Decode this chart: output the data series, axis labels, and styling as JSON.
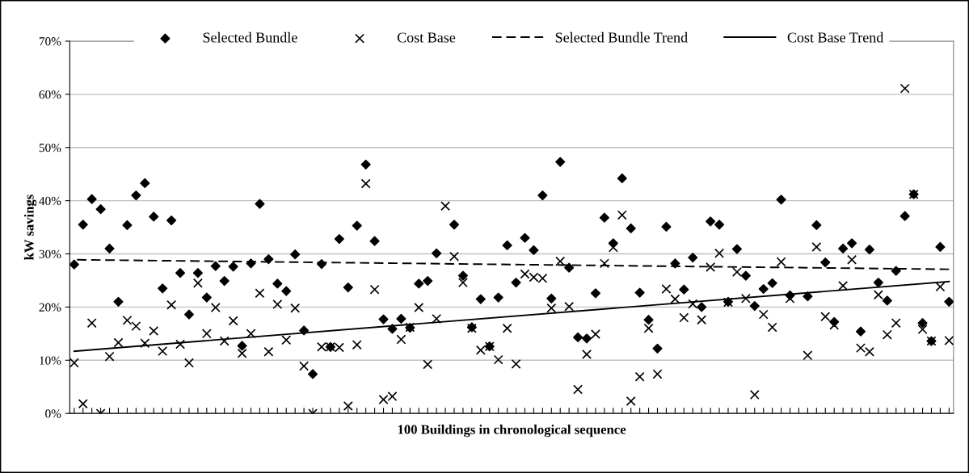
{
  "chart_data": {
    "type": "scatter",
    "xlabel": "100 Buildings in chronological sequence",
    "ylabel": "kW savings",
    "categories": [
      null,
      null,
      null,
      null,
      null,
      null,
      null,
      null,
      null,
      null,
      null,
      null,
      null,
      null,
      null,
      null,
      null,
      null,
      null,
      null,
      null,
      null,
      null,
      null,
      null,
      null,
      null,
      null,
      null,
      null,
      null,
      null,
      null,
      null,
      null,
      null,
      null,
      null,
      null,
      null,
      null,
      null,
      null,
      null,
      null,
      null,
      null,
      null,
      null,
      null,
      null,
      null,
      null,
      null,
      null,
      null,
      null,
      null,
      null,
      null,
      null,
      null,
      null,
      null,
      null,
      null,
      null,
      null,
      null,
      null,
      null,
      null,
      null,
      null,
      null,
      null,
      null,
      null,
      null,
      null,
      null,
      null,
      null,
      null,
      null,
      null,
      null,
      null,
      null,
      null,
      null,
      null,
      null,
      null,
      null,
      null,
      null,
      null,
      null,
      null
    ],
    "series": [
      {
        "name": "Selected Bundle",
        "marker": "diamond",
        "color": "#000000",
        "values": [
          28,
          35.5,
          40.3,
          38.4,
          31,
          21,
          35.4,
          41,
          43.3,
          37,
          23.5,
          36.3,
          26.4,
          18.6,
          26.4,
          21.8,
          27.7,
          24.9,
          27.6,
          12.7,
          28.2,
          39.4,
          29,
          24.4,
          23,
          29.9,
          15.6,
          7.4,
          28.1,
          12.5,
          32.8,
          23.7,
          35.3,
          46.8,
          32.4,
          17.7,
          15.9,
          17.8,
          16.1,
          24.4,
          24.9,
          30.1,
          null,
          35.5,
          25.9,
          16.2,
          21.5,
          12.6,
          21.8,
          31.6,
          24.6,
          33,
          30.7,
          41,
          21.6,
          47.3,
          27.4,
          14.3,
          14.1,
          22.6,
          36.8,
          32,
          44.2,
          34.8,
          22.7,
          17.6,
          12.2,
          35.1,
          28.2,
          23.3,
          29.3,
          20,
          36.1,
          35.5,
          21,
          30.9,
          25.9,
          20.2,
          23.4,
          24.5,
          40.2,
          22.2,
          null,
          22,
          35.4,
          28.4,
          17.2,
          31,
          32,
          15.4,
          30.8,
          24.6,
          21.2,
          26.8,
          37.1,
          41.2,
          17,
          13.6,
          31.3,
          21
        ]
      },
      {
        "name": "Cost Base",
        "marker": "cross",
        "color": "#000000",
        "values": [
          9.5,
          1.8,
          17,
          0,
          10.7,
          13.3,
          17.5,
          16.4,
          13.2,
          15.5,
          11.7,
          20.4,
          13,
          9.5,
          24.5,
          15,
          19.9,
          13.6,
          17.4,
          11.3,
          15,
          22.6,
          11.6,
          20.5,
          13.8,
          19.8,
          8.9,
          0,
          12.5,
          12.5,
          12.4,
          1.4,
          12.9,
          43.2,
          23.3,
          2.6,
          3.2,
          13.9,
          16.2,
          19.9,
          9.2,
          17.8,
          39,
          29.5,
          24.6,
          16,
          11.9,
          12.6,
          10.1,
          16,
          9.3,
          26.2,
          25.6,
          25.4,
          19.8,
          28.6,
          20.1,
          4.5,
          11.1,
          14.9,
          28.2,
          31.2,
          37.3,
          2.3,
          6.9,
          16,
          7.4,
          23.4,
          21.5,
          18,
          20.6,
          17.6,
          27.5,
          30.1,
          20.9,
          26.6,
          21.6,
          3.5,
          18.6,
          16.2,
          28.5,
          21.6,
          null,
          10.9,
          31.3,
          18.2,
          16.6,
          24,
          28.9,
          12.3,
          11.6,
          22.3,
          14.8,
          17,
          61.1,
          41.2,
          15.8,
          13.6,
          23.8,
          13.7
        ]
      },
      {
        "name": "Selected Bundle Trend",
        "type": "line",
        "line_style": "dashed",
        "color": "#000000",
        "values": [
          28.9,
          null,
          null,
          null,
          null,
          null,
          null,
          null,
          null,
          null,
          null,
          null,
          null,
          null,
          null,
          null,
          null,
          null,
          null,
          null,
          null,
          null,
          null,
          null,
          null,
          null,
          null,
          null,
          null,
          null,
          null,
          null,
          null,
          null,
          null,
          null,
          null,
          null,
          null,
          null,
          null,
          null,
          null,
          null,
          null,
          null,
          null,
          null,
          null,
          null,
          null,
          null,
          null,
          null,
          null,
          null,
          null,
          null,
          null,
          null,
          null,
          null,
          null,
          null,
          null,
          null,
          null,
          null,
          null,
          null,
          null,
          null,
          null,
          null,
          null,
          null,
          null,
          null,
          null,
          null,
          null,
          null,
          null,
          null,
          null,
          null,
          null,
          null,
          null,
          null,
          null,
          null,
          null,
          null,
          null,
          null,
          null,
          null,
          null,
          27.1
        ]
      },
      {
        "name": "Cost Base Trend",
        "type": "line",
        "line_style": "solid",
        "color": "#000000",
        "values": [
          11.7,
          null,
          null,
          null,
          null,
          null,
          null,
          null,
          null,
          null,
          null,
          null,
          null,
          null,
          null,
          null,
          null,
          null,
          null,
          null,
          null,
          null,
          null,
          null,
          null,
          null,
          null,
          null,
          null,
          null,
          null,
          null,
          null,
          null,
          null,
          null,
          null,
          null,
          null,
          null,
          null,
          null,
          null,
          null,
          null,
          null,
          null,
          null,
          null,
          null,
          null,
          null,
          null,
          null,
          null,
          null,
          null,
          null,
          null,
          null,
          null,
          null,
          null,
          null,
          null,
          null,
          null,
          null,
          null,
          null,
          null,
          null,
          null,
          null,
          null,
          null,
          null,
          null,
          null,
          null,
          null,
          null,
          null,
          null,
          null,
          null,
          null,
          null,
          null,
          null,
          null,
          null,
          null,
          null,
          null,
          null,
          null,
          null,
          null,
          24.8
        ]
      }
    ],
    "ylim": [
      0,
      70
    ],
    "yticks": [
      {
        "value": 0,
        "label": "0%"
      },
      {
        "value": 10,
        "label": "10%"
      },
      {
        "value": 20,
        "label": "20%"
      },
      {
        "value": 30,
        "label": "30%"
      },
      {
        "value": 40,
        "label": "40%"
      },
      {
        "value": 50,
        "label": "50%"
      },
      {
        "value": 60,
        "label": "60%"
      },
      {
        "value": 70,
        "label": "70%"
      }
    ],
    "grid": "y",
    "legend": "top",
    "tick_labels": "y"
  }
}
